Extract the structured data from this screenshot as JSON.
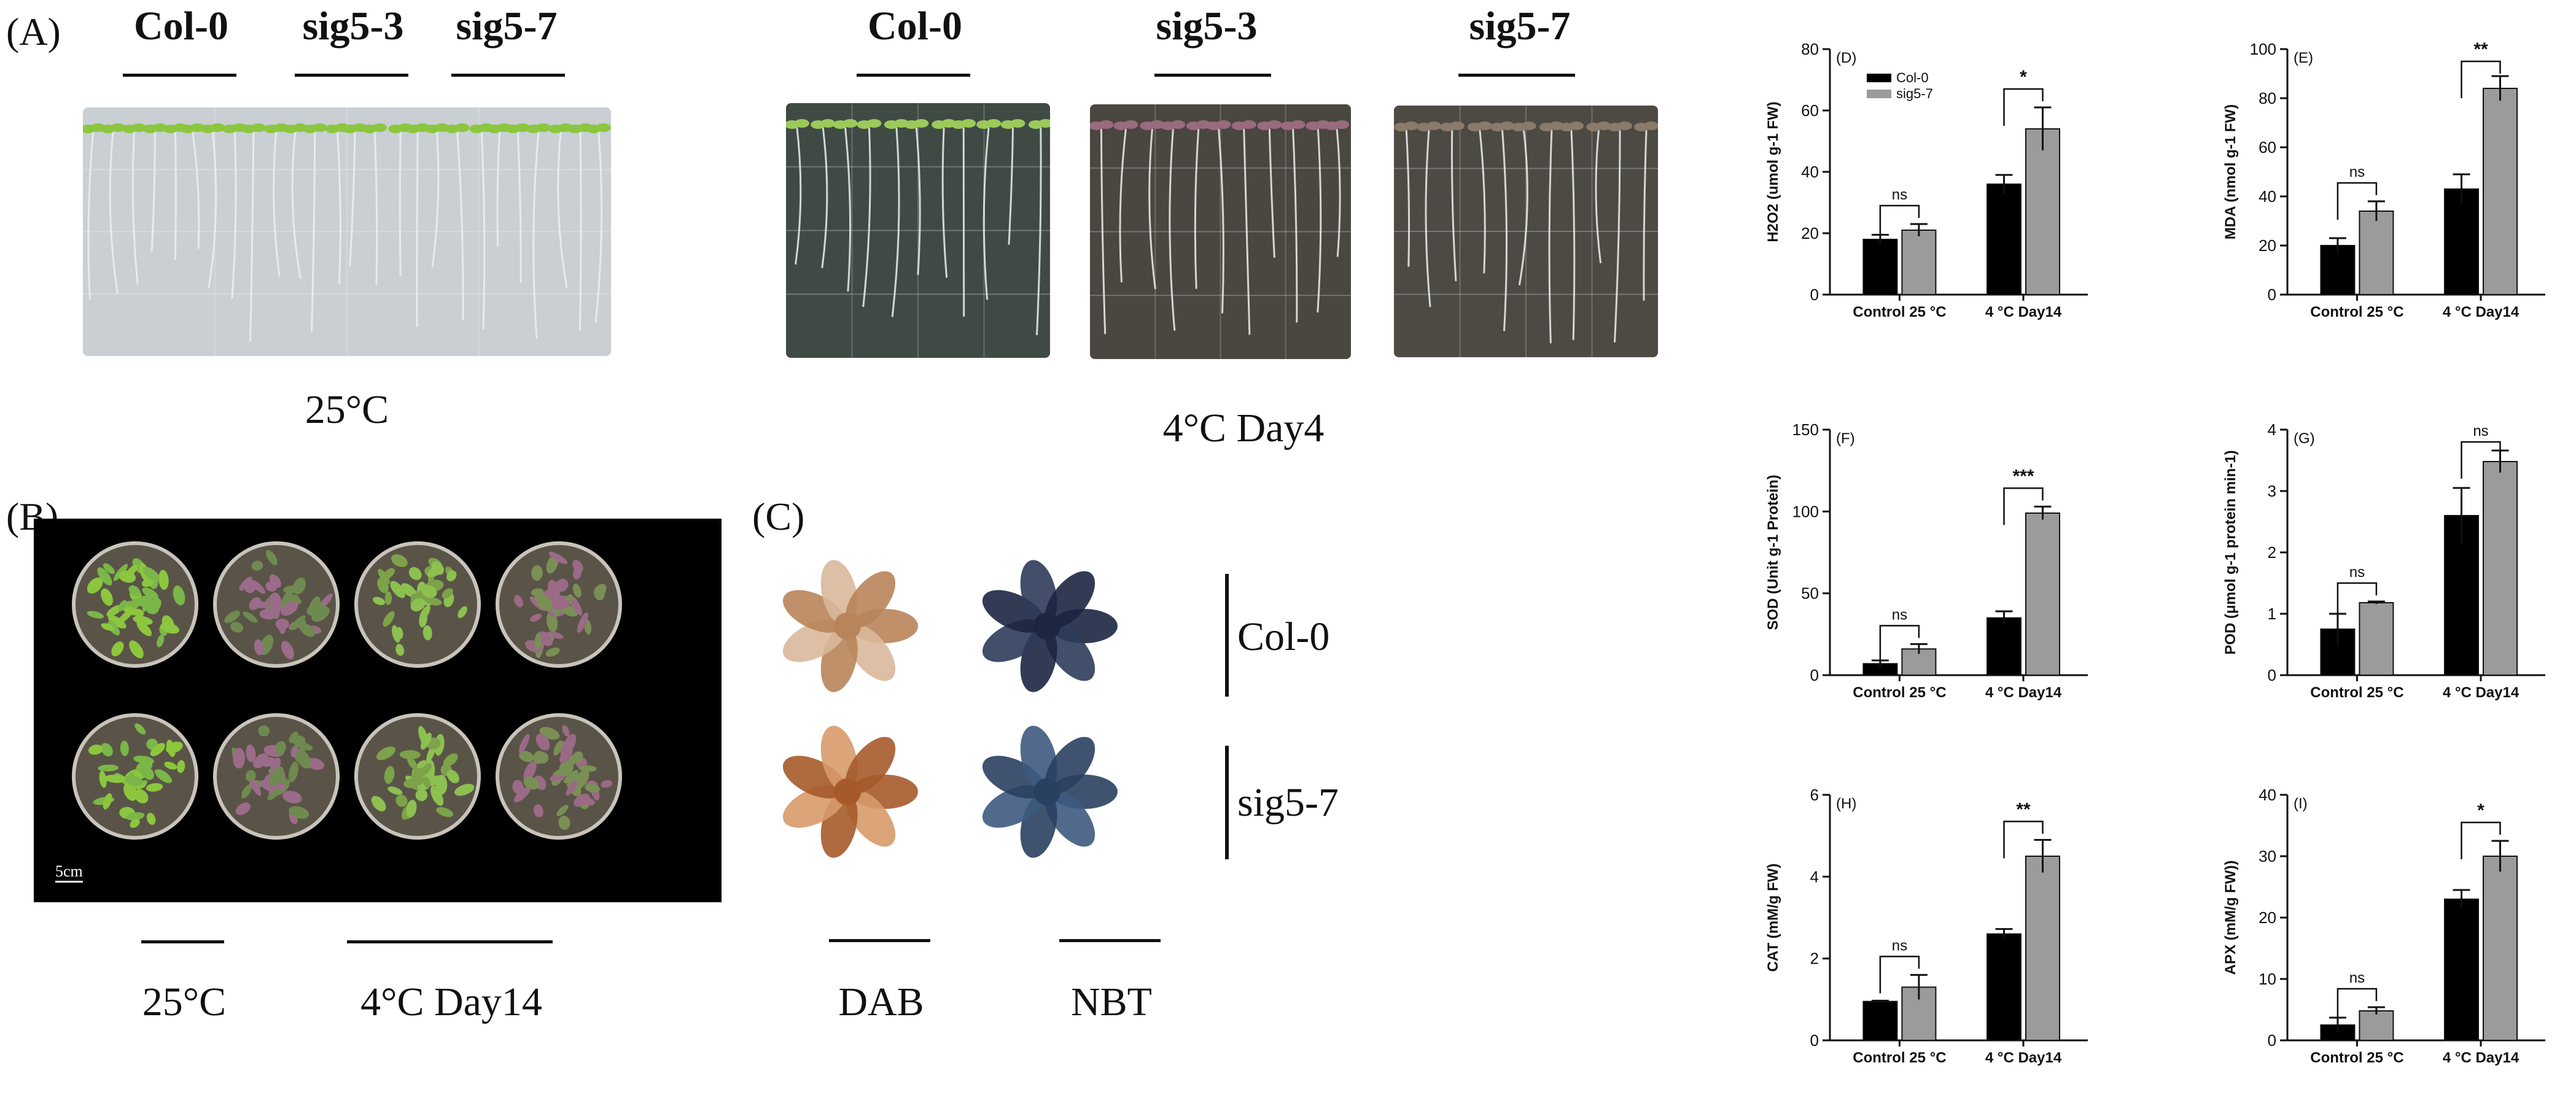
{
  "panels": {
    "A": {
      "letter": "(A)",
      "left_genotypes": [
        "Col-0",
        "sig5-3",
        "sig5-7"
      ],
      "left_condition": "25°C",
      "right_genotypes": [
        "Col-0",
        "sig5-3",
        "sig5-7"
      ],
      "right_condition": "4°C Day4"
    },
    "B": {
      "letter": "(B)",
      "scale": "5cm",
      "cond_left": "25°C",
      "cond_right": "4°C Day14"
    },
    "C": {
      "letter": "(C)",
      "row_labels": [
        "Col-0",
        "sig5-7"
      ],
      "stains": [
        "DAB",
        "NBT"
      ]
    }
  },
  "colors": {
    "col0": "#000000",
    "sig57": "#9b9b9b",
    "plate_bg": "#c9cfd3",
    "cold_plate_bg": "#3f4a45",
    "pot_photo_bg": "#000000"
  },
  "chart_data": [
    {
      "type": "bar",
      "panel": "(D)",
      "ylabel": "H2O2 (umol g-1 FW)",
      "categories": [
        "Control 25 °C",
        "4 °C Day14"
      ],
      "ylim": [
        0,
        80
      ],
      "yticks": [
        0,
        20,
        40,
        60,
        80
      ],
      "series": [
        {
          "name": "Col-0",
          "values": [
            18,
            36
          ],
          "errors": [
            1.5,
            3
          ]
        },
        {
          "name": "sig5-7",
          "values": [
            21,
            54
          ],
          "errors": [
            2,
            7
          ]
        }
      ],
      "significance": [
        "ns",
        "*"
      ],
      "legend": "top-left"
    },
    {
      "type": "bar",
      "panel": "(E)",
      "ylabel": "MDA (nmol g-1 FW)",
      "categories": [
        "Control 25 °C",
        "4 °C Day14"
      ],
      "ylim": [
        0,
        100
      ],
      "yticks": [
        0,
        20,
        40,
        60,
        80,
        100
      ],
      "series": [
        {
          "name": "Col-0",
          "values": [
            20,
            43
          ],
          "errors": [
            3,
            6
          ]
        },
        {
          "name": "sig5-7",
          "values": [
            34,
            84
          ],
          "errors": [
            4,
            5
          ]
        }
      ],
      "significance": [
        "ns",
        "**"
      ]
    },
    {
      "type": "bar",
      "panel": "(F)",
      "ylabel": "SOD (Unit g-1 Protein)",
      "categories": [
        "Control 25 °C",
        "4 °C Day14"
      ],
      "ylim": [
        0,
        150
      ],
      "yticks": [
        0,
        50,
        100,
        150
      ],
      "series": [
        {
          "name": "Col-0",
          "values": [
            7,
            35
          ],
          "errors": [
            2,
            4
          ]
        },
        {
          "name": "sig5-7",
          "values": [
            16,
            99
          ],
          "errors": [
            3,
            4
          ]
        }
      ],
      "significance": [
        "ns",
        "***"
      ]
    },
    {
      "type": "bar",
      "panel": "(G)",
      "ylabel": "POD (μmol g-1 protein min-1)",
      "categories": [
        "Control 25 °C",
        "4 °C Day14"
      ],
      "ylim": [
        0,
        4
      ],
      "yticks": [
        0,
        1,
        2,
        3,
        4
      ],
      "series": [
        {
          "name": "Col-0",
          "values": [
            0.75,
            2.6
          ],
          "errors": [
            0.25,
            0.45
          ]
        },
        {
          "name": "sig5-7",
          "values": [
            1.18,
            3.48
          ],
          "errors": [
            0.02,
            0.18
          ]
        }
      ],
      "significance": [
        "ns",
        "ns"
      ]
    },
    {
      "type": "bar",
      "panel": "(H)",
      "ylabel": "CAT (mM/g FW)",
      "categories": [
        "Control 25 °C",
        "4 °C Day14"
      ],
      "ylim": [
        0,
        6
      ],
      "yticks": [
        0,
        2,
        4,
        6
      ],
      "series": [
        {
          "name": "Col-0",
          "values": [
            0.95,
            2.6
          ],
          "errors": [
            0.02,
            0.12
          ]
        },
        {
          "name": "sig5-7",
          "values": [
            1.3,
            4.5
          ],
          "errors": [
            0.3,
            0.4
          ]
        }
      ],
      "significance": [
        "ns",
        "**"
      ]
    },
    {
      "type": "bar",
      "panel": "(I)",
      "ylabel": "APX (mM/g FW))",
      "categories": [
        "Control 25 °C",
        "4 °C Day14"
      ],
      "ylim": [
        0,
        40
      ],
      "yticks": [
        0,
        10,
        20,
        30,
        40
      ],
      "series": [
        {
          "name": "Col-0",
          "values": [
            2.5,
            23
          ],
          "errors": [
            1.2,
            1.5
          ]
        },
        {
          "name": "sig5-7",
          "values": [
            4.8,
            30
          ],
          "errors": [
            0.6,
            2.5
          ]
        }
      ],
      "significance": [
        "ns",
        "*"
      ]
    }
  ]
}
